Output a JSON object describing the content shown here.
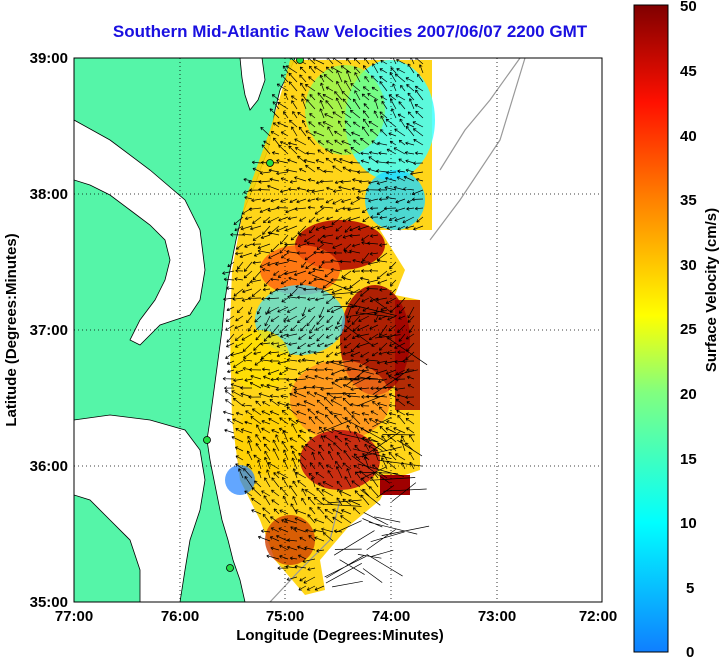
{
  "title": "Southern Mid-Atlantic Raw Velocities 2007/06/07 2200 GMT",
  "x_axis": {
    "label": "Longitude (Degrees:Minutes)",
    "ticks": [
      "77:00",
      "76:00",
      "75:00",
      "74:00",
      "73:00",
      "72:00"
    ]
  },
  "y_axis": {
    "label": "Latitude (Degrees:Minutes)",
    "ticks": [
      "39:00",
      "38:00",
      "37:00",
      "36:00",
      "35:00"
    ]
  },
  "colorbar": {
    "label": "Surface Velocity (cm/s)",
    "ticks": [
      "50",
      "45",
      "40",
      "35",
      "30",
      "25",
      "20",
      "15",
      "10",
      "5",
      "0"
    ],
    "min": 0,
    "max": 50
  },
  "colors": {
    "land": "#55f5a8",
    "title": "#1a10e0"
  }
}
